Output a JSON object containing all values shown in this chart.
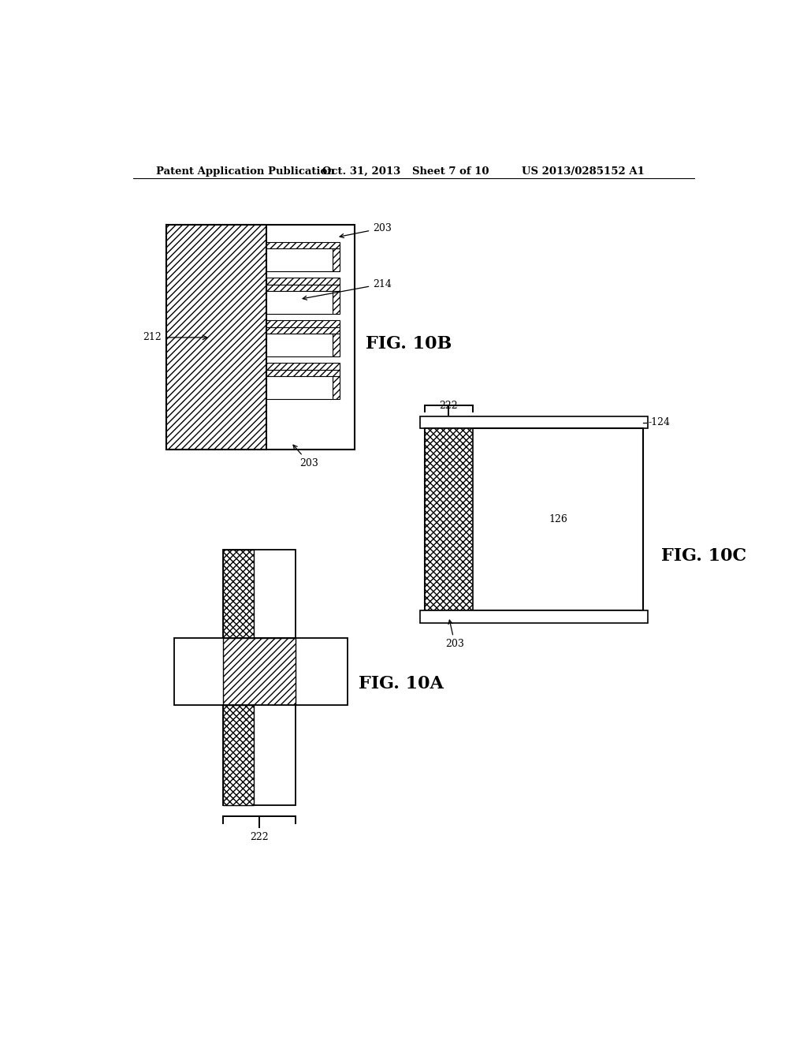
{
  "bg_color": "#ffffff",
  "header_text": "Patent Application Publication",
  "header_date": "Oct. 31, 2013",
  "header_sheet": "Sheet 7 of 10",
  "header_patent": "US 2013/0285152 A1"
}
